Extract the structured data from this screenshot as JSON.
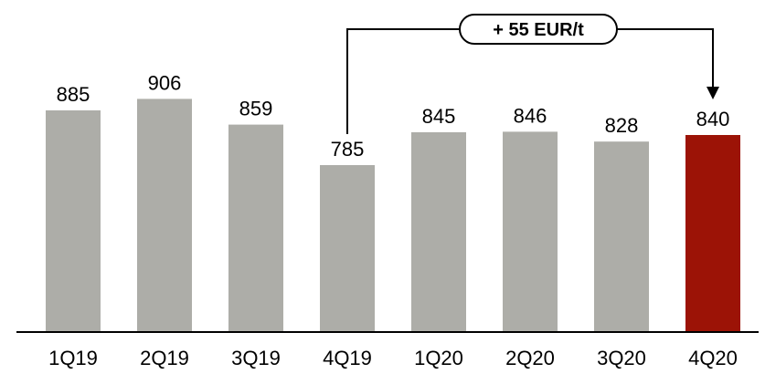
{
  "chart_data": {
    "type": "bar",
    "categories": [
      "1Q19",
      "2Q19",
      "3Q19",
      "4Q19",
      "1Q20",
      "2Q20",
      "3Q20",
      "4Q20"
    ],
    "values": [
      885,
      906,
      859,
      785,
      845,
      846,
      828,
      840
    ],
    "title": "",
    "xlabel": "",
    "ylabel": "",
    "ylim": [
      480,
      960
    ],
    "grid": false,
    "legend": "none",
    "colors": {
      "default_bar": "#adada8",
      "highlight_bar": "#9c1306",
      "axis": "#000000"
    },
    "highlight_index": 7,
    "annotation": {
      "text": "+ 55 EUR/t",
      "from_category": "4Q19",
      "to_category": "4Q20"
    }
  }
}
